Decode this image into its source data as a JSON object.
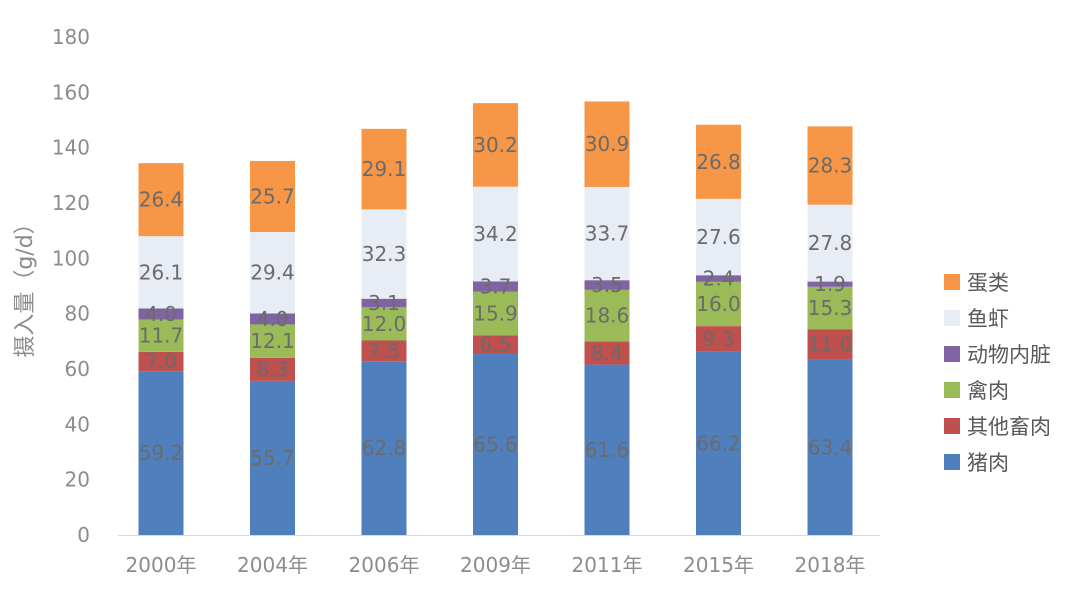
{
  "chart_data": {
    "type": "bar",
    "stacked": true,
    "ylabel": "摄入量（g/d）",
    "ylim": [
      0,
      180
    ],
    "yticks": [
      0,
      20,
      40,
      60,
      80,
      100,
      120,
      140,
      160,
      180
    ],
    "grid": false,
    "legend_position": "right",
    "categories": [
      "2000年",
      "2004年",
      "2006年",
      "2009年",
      "2011年",
      "2015年",
      "2018年"
    ],
    "series": [
      {
        "name": "猪肉",
        "color": "#4f7fbd",
        "values": [
          59.2,
          55.7,
          62.8,
          65.6,
          61.6,
          66.2,
          63.4
        ]
      },
      {
        "name": "其他畜肉",
        "color": "#c0504d",
        "values": [
          7.0,
          8.3,
          7.5,
          6.5,
          8.4,
          9.3,
          11.0
        ]
      },
      {
        "name": "禽肉",
        "color": "#9bbb59",
        "values": [
          11.7,
          12.1,
          12.0,
          15.9,
          18.6,
          16.0,
          15.3
        ]
      },
      {
        "name": "动物内脏",
        "color": "#8064a2",
        "values": [
          4.0,
          4.0,
          3.1,
          3.7,
          3.5,
          2.4,
          1.9
        ]
      },
      {
        "name": "鱼虾",
        "color": "#e8edf5",
        "values": [
          26.1,
          29.4,
          32.3,
          34.2,
          33.7,
          27.6,
          27.8
        ]
      },
      {
        "name": "蛋类",
        "color": "#f79646",
        "values": [
          26.4,
          25.7,
          29.1,
          30.2,
          30.9,
          26.8,
          28.3
        ]
      }
    ],
    "legend_order": [
      "蛋类",
      "鱼虾",
      "动物内脏",
      "禽肉",
      "其他畜肉",
      "猪肉"
    ]
  }
}
